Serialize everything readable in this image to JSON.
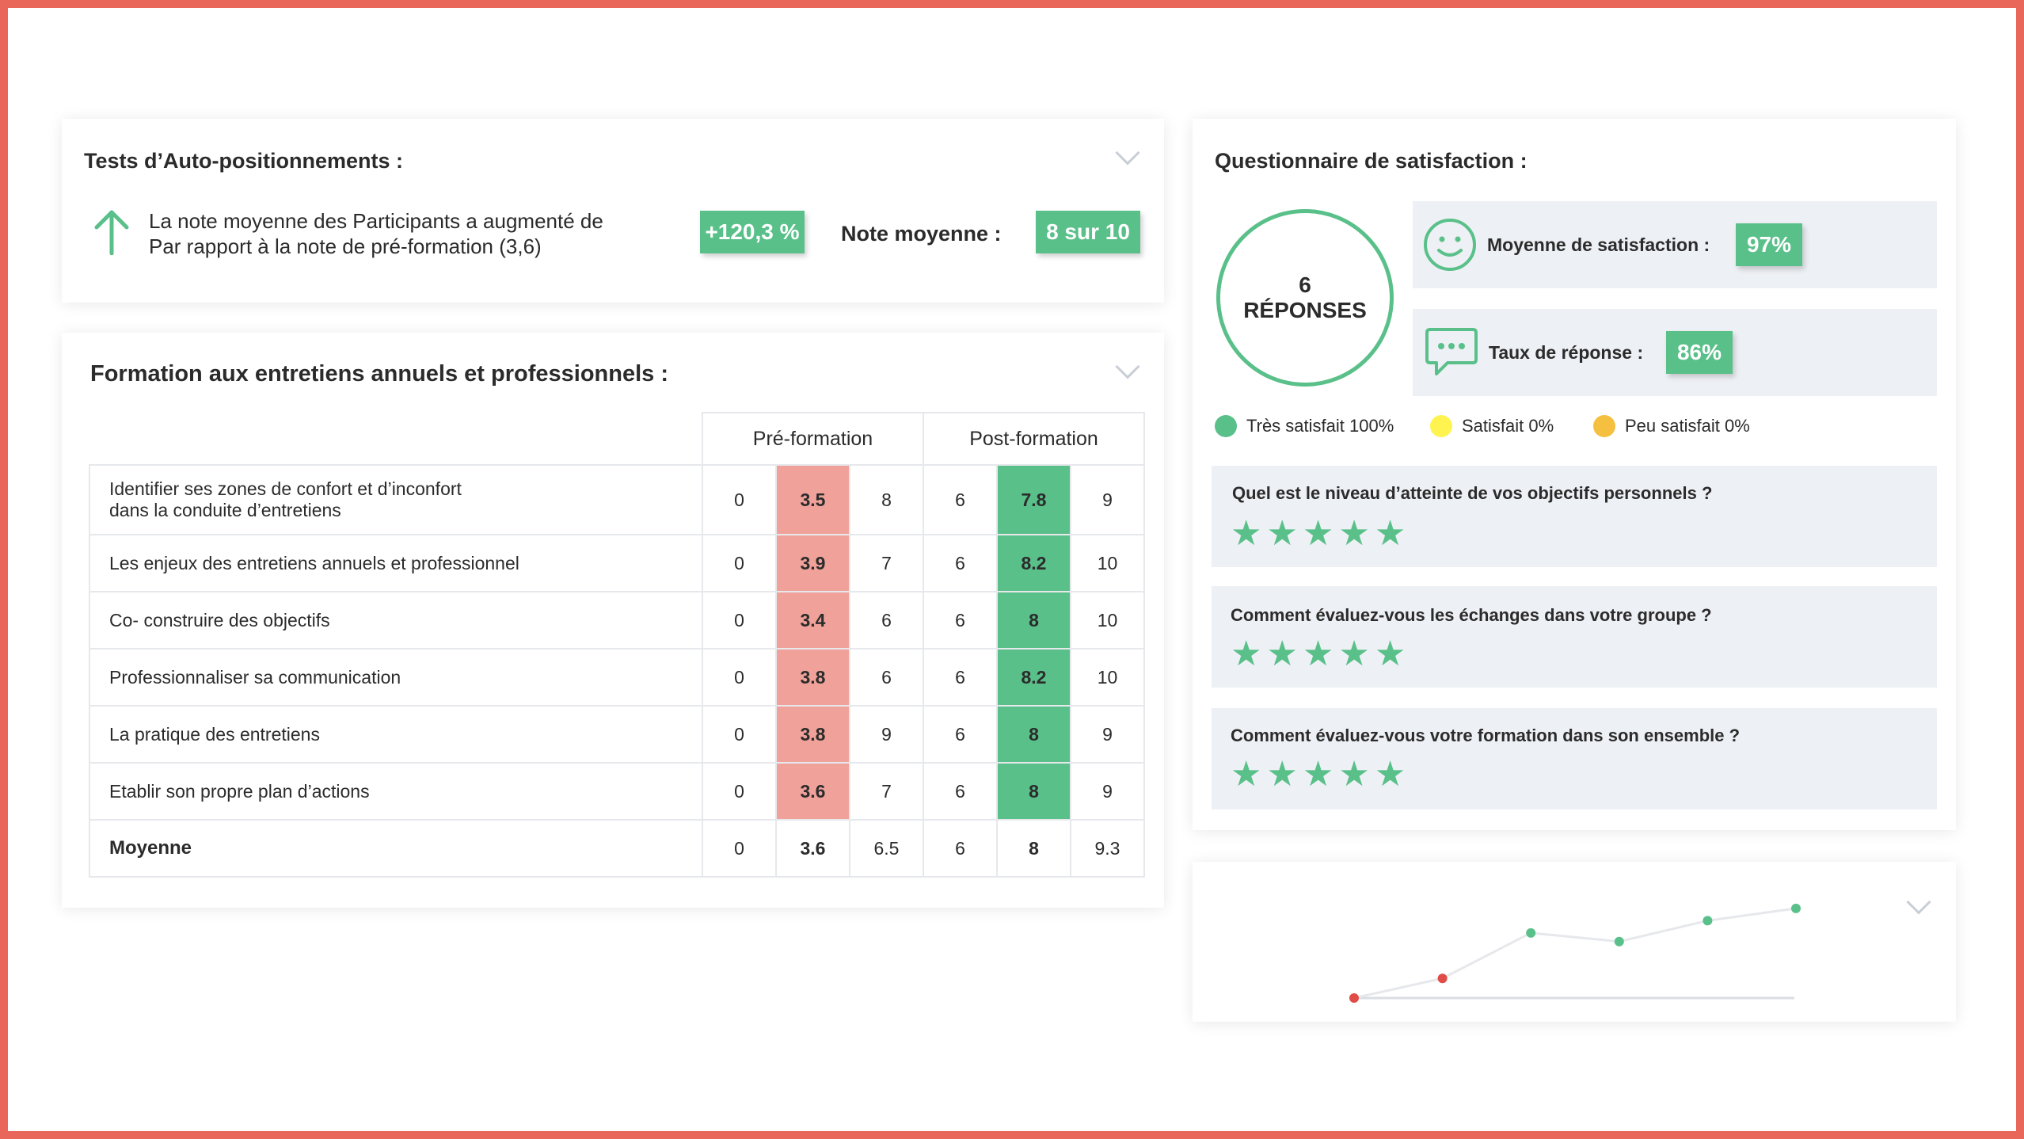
{
  "colors": {
    "frame": "#e8675a",
    "green": "#5ac08a",
    "red_cell": "#f0a29a",
    "yellow": "#fff44f",
    "orange": "#f5bf3f",
    "gray_box": "#edf0f4"
  },
  "auto_test": {
    "title": "Tests d’Auto-positionnements :",
    "line1": "La note moyenne des Participants a augmenté de",
    "line2": "Par rapport à la note de pré-formation (3,6)",
    "increase": "+120,3 %",
    "note_label": "Note moyenne :",
    "note_value": "8 sur 10",
    "icon": "arrow-up-icon"
  },
  "formation": {
    "title": "Formation aux entretiens annuels et professionnels :",
    "headers": {
      "pre": "Pré-formation",
      "post": "Post-formation"
    },
    "rows": [
      {
        "label1": "Identifier ses zones de confort et d’inconfort",
        "label2": "dans la conduite d’entretiens",
        "pre_min": "0",
        "pre": "3.5",
        "pre_max": "8",
        "post_min": "6",
        "post": "7.8",
        "post_max": "9"
      },
      {
        "label1": "Les enjeux des entretiens annuels et professionnel",
        "pre_min": "0",
        "pre": "3.9",
        "pre_max": "7",
        "post_min": "6",
        "post": "8.2",
        "post_max": "10"
      },
      {
        "label1": "Co- construire des objectifs",
        "pre_min": "0",
        "pre": "3.4",
        "pre_max": "6",
        "post_min": "6",
        "post": "8",
        "post_max": "10"
      },
      {
        "label1": "Professionnaliser sa communication",
        "pre_min": "0",
        "pre": "3.8",
        "pre_max": "6",
        "post_min": "6",
        "post": "8.2",
        "post_max": "10"
      },
      {
        "label1": "La pratique des entretiens",
        "pre_min": "0",
        "pre": "3.8",
        "pre_max": "9",
        "post_min": "6",
        "post": "8",
        "post_max": "9"
      },
      {
        "label1": "Etablir son propre plan d’actions",
        "pre_min": "0",
        "pre": "3.6",
        "pre_max": "7",
        "post_min": "6",
        "post": "8",
        "post_max": "9"
      }
    ],
    "average": {
      "label": "Moyenne",
      "pre_min": "0",
      "pre": "3.6",
      "pre_max": "6.5",
      "post_min": "6",
      "post": "8",
      "post_max": "9.3"
    }
  },
  "satisfaction": {
    "title": "Questionnaire de satisfaction :",
    "responses_count": "6",
    "responses_label": "RÉPONSES",
    "mean_label": "Moyenne de satisfaction :",
    "mean_value": "97%",
    "rate_label": "Taux de réponse :",
    "rate_value": "86%",
    "legend": [
      {
        "label": "Très satisfait 100%",
        "color": "#5ac08a"
      },
      {
        "label": "Satisfait 0%",
        "color": "#fff44f"
      },
      {
        "label": "Peu satisfait 0%",
        "color": "#f5bf3f"
      }
    ],
    "questions": [
      {
        "text": "Quel est le niveau d’atteinte de vos objectifs personnels ?",
        "stars": 5
      },
      {
        "text": "Comment évaluez-vous les échanges dans votre groupe ?",
        "stars": 5
      },
      {
        "text": "Comment évaluez-vous votre formation dans son ensemble ?",
        "stars": 5
      }
    ]
  },
  "chart_data": {
    "type": "line",
    "x": [
      1,
      2,
      3,
      4,
      5,
      6
    ],
    "series": [
      {
        "values": [
          0,
          1.6,
          5.3,
          4.6,
          6.3,
          7.3
        ]
      }
    ],
    "point_colors": [
      "#e04c47",
      "#e04c47",
      "#5ac08a",
      "#5ac08a",
      "#5ac08a",
      "#5ac08a"
    ],
    "ylim": [
      0,
      8
    ],
    "grid": false
  }
}
